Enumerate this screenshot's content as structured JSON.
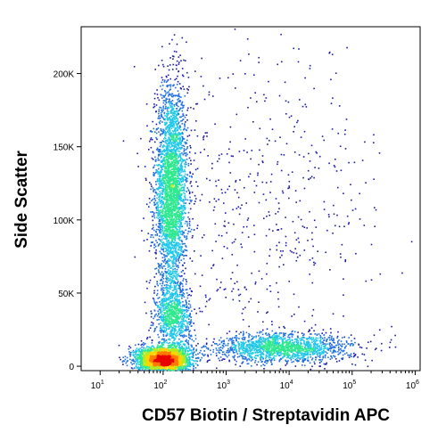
{
  "chart_data": {
    "type": "scatter",
    "subtype": "density-dot-plot",
    "xlabel": "CD57 Biotin / Streptavidin APC",
    "ylabel": "Side Scatter",
    "x_scale": "log",
    "xlim": [
      5,
      1200000
    ],
    "ylim": [
      -3000,
      232000
    ],
    "x_ticks": [
      {
        "value": 10,
        "base": "10",
        "exp": "1"
      },
      {
        "value": 100,
        "base": "10",
        "exp": "2"
      },
      {
        "value": 1000,
        "base": "10",
        "exp": "3"
      },
      {
        "value": 10000,
        "base": "10",
        "exp": "4"
      },
      {
        "value": 100000,
        "base": "10",
        "exp": "5"
      },
      {
        "value": 1000000,
        "base": "10",
        "exp": "6"
      }
    ],
    "y_ticks": [
      {
        "value": 0,
        "label": "0"
      },
      {
        "value": 50000,
        "label": "50K"
      },
      {
        "value": 100000,
        "label": "100K"
      },
      {
        "value": 150000,
        "label": "150K"
      },
      {
        "value": 200000,
        "label": "200K"
      }
    ],
    "grid": false,
    "legend": "none",
    "density_colormap": [
      "#1a1aa8",
      "#1e6fe0",
      "#22c8e8",
      "#30e890",
      "#b4ea20",
      "#ffd400",
      "#ff7a00",
      "#e80000"
    ],
    "populations": [
      {
        "x_log_center": 2.12,
        "y_center": 120000,
        "x_log_sd": 0.13,
        "y_sd": 36000,
        "weight": 0.36
      },
      {
        "x_log_center": 2.15,
        "y_center": 34000,
        "x_log_sd": 0.14,
        "y_sd": 11000,
        "weight": 0.1
      },
      {
        "x_log_center": 2.0,
        "y_center": 5000,
        "x_log_sd": 0.22,
        "y_sd": 4500,
        "weight": 0.3
      },
      {
        "x_log_center": 3.9,
        "y_center": 13000,
        "x_log_sd": 0.55,
        "y_sd": 5000,
        "weight": 0.18
      },
      {
        "x_log_center": 3.6,
        "y_center": 110000,
        "x_log_sd": 0.9,
        "y_sd": 55000,
        "weight": 0.06
      }
    ]
  }
}
